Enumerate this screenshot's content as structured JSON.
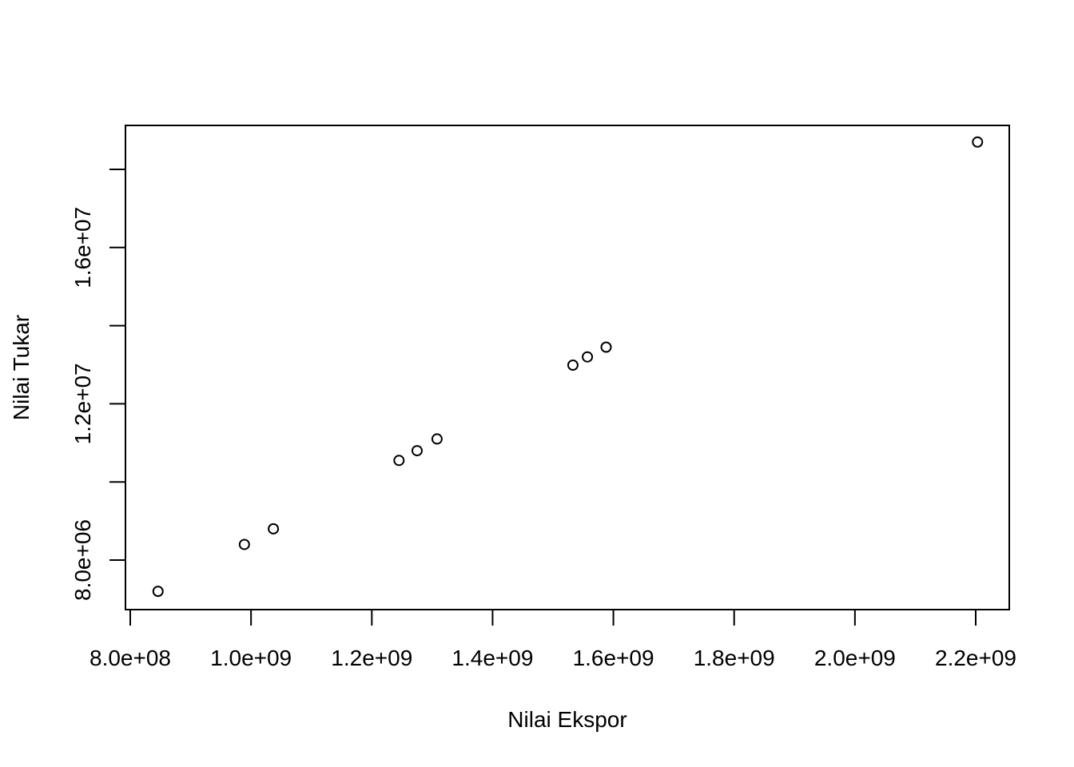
{
  "chart_data": {
    "type": "scatter",
    "title": "",
    "xlabel": "Nilai Ekspor",
    "ylabel": "Nilai Tukar",
    "xlim": [
      800000000,
      2200000000
    ],
    "ylim": [
      6700000,
      18000000
    ],
    "x_ticks": [
      {
        "value": 800000000,
        "label": "8.0e+08"
      },
      {
        "value": 1000000000,
        "label": "1.0e+09"
      },
      {
        "value": 1200000000,
        "label": "1.2e+09"
      },
      {
        "value": 1400000000,
        "label": "1.4e+09"
      },
      {
        "value": 1600000000,
        "label": "1.6e+09"
      },
      {
        "value": 1800000000,
        "label": "1.8e+09"
      },
      {
        "value": 2000000000,
        "label": "2.0e+09"
      },
      {
        "value": 2200000000,
        "label": "2.2e+09"
      }
    ],
    "y_ticks": [
      {
        "value": 8000000,
        "label": "8.0e+06"
      },
      {
        "value": 10000000,
        "label": ""
      },
      {
        "value": 12000000,
        "label": "1.2e+07"
      },
      {
        "value": 14000000,
        "label": ""
      },
      {
        "value": 16000000,
        "label": "1.6e+07"
      },
      {
        "value": 18000000,
        "label": ""
      }
    ],
    "grid": false,
    "points": [
      {
        "x": 846000000,
        "y": 7200000
      },
      {
        "x": 989000000,
        "y": 8400000
      },
      {
        "x": 1037000000,
        "y": 8800000
      },
      {
        "x": 1245000000,
        "y": 10550000
      },
      {
        "x": 1275000000,
        "y": 10800000
      },
      {
        "x": 1308000000,
        "y": 11100000
      },
      {
        "x": 1533000000,
        "y": 12990000
      },
      {
        "x": 1557000000,
        "y": 13200000
      },
      {
        "x": 1588000000,
        "y": 13450000
      },
      {
        "x": 2203000000,
        "y": 18700000
      }
    ]
  }
}
